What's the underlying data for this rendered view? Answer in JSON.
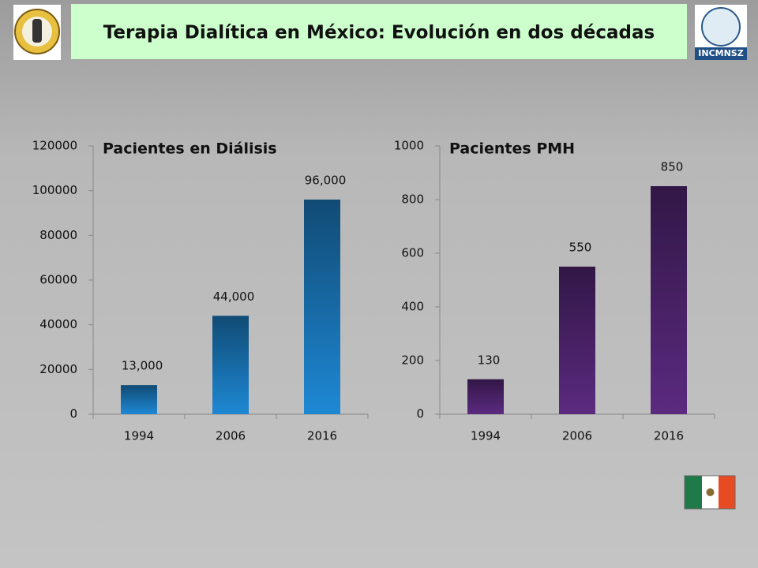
{
  "header": {
    "title": "Terapia Dialítica en México: Evolución en dos décadas"
  },
  "logos": {
    "right": "INCMNSZ"
  },
  "chart_data": [
    {
      "type": "bar",
      "title": "Pacientes en Diálisis",
      "categories": [
        "1994",
        "2006",
        "2016"
      ],
      "values": [
        13000,
        44000,
        96000
      ],
      "value_labels": [
        "13,000",
        "44,000",
        "96,000"
      ],
      "color": "#1e88d4",
      "ylim": [
        0,
        120000
      ],
      "yticks": [
        0,
        20000,
        40000,
        60000,
        80000,
        100000,
        120000
      ]
    },
    {
      "type": "bar",
      "title": "Pacientes PMH",
      "categories": [
        "1994",
        "2006",
        "2016"
      ],
      "values": [
        130,
        550,
        850
      ],
      "color": "#5b2a80",
      "ylim": [
        0,
        1000
      ],
      "yticks": [
        0,
        200,
        400,
        600,
        800,
        1000
      ]
    }
  ]
}
